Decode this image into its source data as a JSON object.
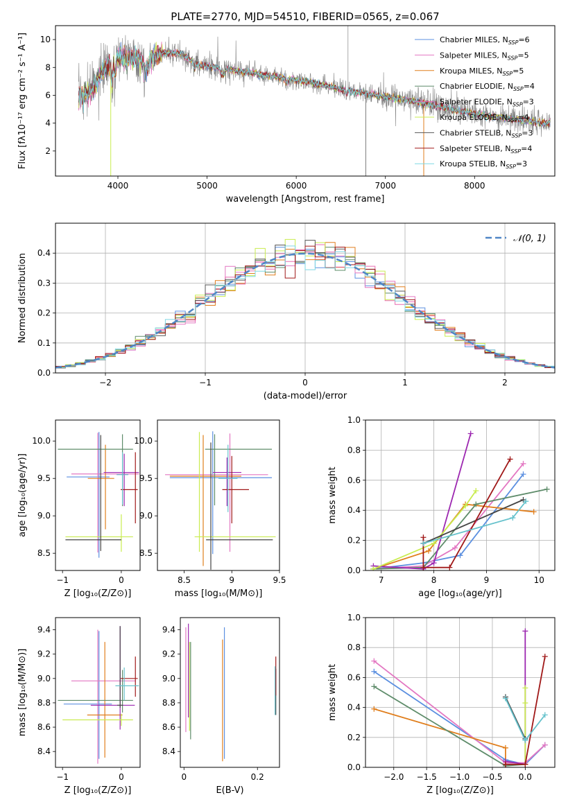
{
  "title": "PLATE=2770, MJD=54510, FIBERID=0565, z=0.067",
  "colors": [
    "#5b8fe0",
    "#e377c2",
    "#e07e1c",
    "#5e8c6a",
    "#e86ab0",
    "#c9ec4f",
    "#555555",
    "#a01818",
    "#7fd8e4"
  ],
  "colors_panels": [
    "#5b8fe0",
    "#e377c2",
    "#e07e1c",
    "#5e8c6a",
    "#9c27b0",
    "#c9ec4f",
    "#444444",
    "#a01818",
    "#66c2cc"
  ],
  "chart_data": [
    {
      "type": "line",
      "xlabel": "wavelength [Angstrom, rest frame]",
      "ylabel": "Flux [fλ10⁻¹⁷ erg cm⁻² s⁻¹ A⁻¹]",
      "xlim": [
        3300,
        8900
      ],
      "ylim": [
        0.2,
        11
      ],
      "xticks": [
        4000,
        5000,
        6000,
        7000,
        8000
      ],
      "yticks": [
        2,
        4,
        6,
        8,
        10
      ],
      "legend_position": "top-right",
      "legend": [
        "Chabrier MILES, N_SSP=6",
        "Salpeter MILES, N_SSP=5",
        "Kroupa MILES, N_SSP=5",
        "Chabrier ELODIE, N_SSP=4",
        "Salpeter ELODIE, N_SSP=3",
        "Kroupa ELODIE, N_SSP=4",
        "Chabrier STELIB, N_SSP=3",
        "Salpeter STELIB, N_SSP=4",
        "Kroupa STELIB, N_SSP=3"
      ],
      "spectrum_anchor_points": {
        "x": [
          3600,
          3700,
          3800,
          3900,
          4000,
          4100,
          4200,
          4300,
          4400,
          4500,
          4600,
          4700,
          4800,
          4900,
          5000,
          5100,
          5200,
          5300,
          5400,
          5500,
          5600,
          5700,
          5800,
          5900,
          6000,
          6200,
          6400,
          6600,
          6800,
          7000,
          7200,
          7400,
          7600,
          7800,
          8000,
          8200,
          8400,
          8800
        ],
        "y": [
          6.0,
          6.3,
          7.4,
          8.2,
          8.7,
          8.9,
          8.7,
          8.5,
          8.8,
          9.1,
          9.0,
          9.0,
          8.6,
          8.2,
          8.1,
          8.0,
          7.9,
          7.8,
          7.7,
          7.6,
          7.5,
          7.4,
          7.3,
          7.2,
          7.1,
          6.9,
          6.6,
          6.3,
          6.1,
          5.9,
          5.7,
          5.5,
          5.2,
          4.9,
          4.7,
          4.5,
          4.3,
          4.0
        ]
      }
    },
    {
      "type": "histogram",
      "xlabel": "(data-model)/error",
      "ylabel": "Normed distribution",
      "xlim": [
        -2.5,
        2.5
      ],
      "ylim": [
        0,
        0.5
      ],
      "xticks": [
        -2,
        -1,
        0,
        1,
        2
      ],
      "yticks": [
        0.0,
        0.1,
        0.2,
        0.3,
        0.4
      ],
      "bin_width": 0.1,
      "grid": true,
      "legend_position": "top-right",
      "legend": [
        "𝒩(0, 1)"
      ],
      "reference_curve": "normal(0,1)"
    },
    {
      "type": "errorbar",
      "xlabel": "Z [log₁₀(Z/Z⊙)]",
      "ylabel": "age  [log₁₀(age/yr)]",
      "xlim": [
        -1.12,
        0.32
      ],
      "ylim": [
        8.27,
        10.28
      ],
      "xticks": [
        -1,
        0
      ],
      "xtick_labels": [
        "−1",
        "0"
      ],
      "yticks": [
        8.5,
        9.0,
        9.5,
        10.0
      ],
      "points": [
        {
          "x": -0.38,
          "xerr": [
            0.55,
            0.18
          ],
          "y": 9.52,
          "yerr": [
            1.08,
            0.6
          ]
        },
        {
          "x": -0.4,
          "xerr": [
            0.45,
            0.7
          ],
          "y": 9.56,
          "yerr": [
            1.05,
            0.55
          ]
        },
        {
          "x": -0.27,
          "xerr": [
            0.3,
            0.15
          ],
          "y": 9.5,
          "yerr": [
            0.68,
            0.45
          ]
        },
        {
          "x": 0.02,
          "xerr": [
            1.1,
            0.18
          ],
          "y": 9.89,
          "yerr": [
            0.76,
            0.2
          ]
        },
        {
          "x": 0.05,
          "xerr": [
            0.35,
            0.25
          ],
          "y": 9.58,
          "yerr": [
            0.45,
            0.25
          ]
        },
        {
          "x": 0.0,
          "xerr": [
            0.95,
            0.2
          ],
          "y": 8.72,
          "yerr": [
            0.2,
            0.3
          ]
        },
        {
          "x": -0.35,
          "xerr": [
            0.6,
            0.35
          ],
          "y": 8.68,
          "yerr": [
            0.15,
            1.4
          ]
        },
        {
          "x": 0.24,
          "xerr": [
            0.25,
            0.04
          ],
          "y": 9.35,
          "yerr": [
            0.45,
            0.5
          ]
        },
        {
          "x": 0.02,
          "xerr": [
            0.1,
            0.1
          ],
          "y": 9.55,
          "yerr": [
            0.4,
            0.3
          ]
        }
      ]
    },
    {
      "type": "errorbar",
      "xlabel": "mass [log₁₀(M/M⊙)]",
      "ylabel": "",
      "xlim": [
        8.22,
        9.5
      ],
      "ylim": [
        8.27,
        10.28
      ],
      "xticks": [
        8.5,
        9.0,
        9.5
      ],
      "yticks": [
        8.5,
        9.0,
        9.5,
        10.0
      ],
      "points": [
        {
          "x": 8.8,
          "xerr": [
            0.45,
            0.62
          ],
          "y": 9.51,
          "yerr": [
            1.02,
            0.62
          ]
        },
        {
          "x": 8.98,
          "xerr": [
            0.68,
            0.4
          ],
          "y": 9.55,
          "yerr": [
            1.03,
            0.55
          ]
        },
        {
          "x": 8.7,
          "xerr": [
            0.35,
            0.4
          ],
          "y": 9.53,
          "yerr": [
            1.2,
            0.55
          ]
        },
        {
          "x": 8.82,
          "xerr": [
            0.1,
            0.6
          ],
          "y": 9.89,
          "yerr": [
            0.75,
            0.2
          ]
        },
        {
          "x": 8.95,
          "xerr": [
            0.15,
            0.15
          ],
          "y": 9.58,
          "yerr": [
            0.45,
            0.2
          ]
        },
        {
          "x": 8.66,
          "xerr": [
            0.05,
            0.8
          ],
          "y": 8.72,
          "yerr": [
            0.2,
            1.4
          ]
        },
        {
          "x": 8.78,
          "xerr": [
            0.05,
            0.65
          ],
          "y": 8.68,
          "yerr": [
            0.4,
            1.3
          ]
        },
        {
          "x": 9.0,
          "xerr": [
            0.1,
            0.18
          ],
          "y": 9.35,
          "yerr": [
            0.45,
            0.45
          ]
        },
        {
          "x": 8.96,
          "xerr": [
            0.1,
            0.1
          ],
          "y": 9.5,
          "yerr": [
            0.45,
            0.45
          ]
        }
      ]
    },
    {
      "type": "line",
      "xlabel": "age  [log₁₀(age/yr)]",
      "ylabel": "mass weight",
      "xlim": [
        6.7,
        10.3
      ],
      "ylim": [
        0,
        1.0
      ],
      "xticks": [
        7,
        8,
        9,
        10
      ],
      "yticks": [
        0.0,
        0.2,
        0.4,
        0.6,
        0.8,
        1.0
      ],
      "grid": true,
      "series": [
        {
          "x": [
            6.85,
            7.8,
            8.5,
            9.7
          ],
          "y": [
            0.01,
            0.05,
            0.1,
            0.64
          ]
        },
        {
          "x": [
            6.85,
            7.8,
            8.4,
            9.7
          ],
          "y": [
            0.01,
            0.03,
            0.15,
            0.71
          ]
        },
        {
          "x": [
            6.85,
            7.9,
            8.6,
            9.9
          ],
          "y": [
            0.01,
            0.13,
            0.44,
            0.39
          ]
        },
        {
          "x": [
            6.85,
            7.8,
            8.8,
            10.15
          ],
          "y": [
            0.01,
            0.02,
            0.44,
            0.54
          ]
        },
        {
          "x": [
            6.85,
            7.8,
            8.0,
            8.7
          ],
          "y": [
            0.03,
            0.01,
            0.05,
            0.91
          ]
        },
        {
          "x": [
            6.85,
            8.0,
            8.6,
            8.8
          ],
          "y": [
            0.01,
            0.18,
            0.43,
            0.53
          ]
        },
        {
          "x": [
            7.8,
            9.7
          ],
          "y": [
            0.18,
            0.47
          ]
        },
        {
          "x": [
            7.8,
            7.8,
            8.3,
            9.45
          ],
          "y": [
            0.22,
            0.02,
            0.02,
            0.74
          ]
        },
        {
          "x": [
            7.8,
            9.5,
            9.75
          ],
          "y": [
            0.18,
            0.35,
            0.46
          ]
        }
      ]
    },
    {
      "type": "errorbar",
      "xlabel": "Z [log₁₀(Z/Z⊙)]",
      "ylabel": "mass [log₁₀(M/M⊙)]",
      "xlim": [
        -1.12,
        0.32
      ],
      "ylim": [
        8.27,
        9.5
      ],
      "xticks": [
        -1,
        0
      ],
      "xtick_labels": [
        "−1",
        "0"
      ],
      "yticks": [
        8.4,
        8.6,
        8.8,
        9.0,
        9.2,
        9.4
      ],
      "points": [
        {
          "x": -0.38,
          "xerr": [
            0.6,
            0.22
          ],
          "y": 8.79,
          "yerr": [
            0.45,
            0.6
          ]
        },
        {
          "x": -0.4,
          "xerr": [
            0.45,
            0.65
          ],
          "y": 8.98,
          "yerr": [
            0.68,
            0.42
          ]
        },
        {
          "x": -0.28,
          "xerr": [
            0.3,
            0.3
          ],
          "y": 8.7,
          "yerr": [
            0.35,
            0.6
          ]
        },
        {
          "x": 0.02,
          "xerr": [
            1.1,
            0.18
          ],
          "y": 8.82,
          "yerr": [
            0.1,
            0.25
          ]
        },
        {
          "x": -0.02,
          "xerr": [
            0.5,
            0.25
          ],
          "y": 8.78,
          "yerr": [
            0.2,
            0.65
          ]
        },
        {
          "x": 0.0,
          "xerr": [
            1.0,
            0.2
          ],
          "y": 8.66,
          "yerr": [
            0.05,
            0.05
          ]
        },
        {
          "x": -0.02,
          "xerr": [
            0.05,
            0.05
          ],
          "y": 8.78,
          "yerr": [
            0.02,
            0.65
          ]
        },
        {
          "x": 0.24,
          "xerr": [
            0.25,
            0.04
          ],
          "y": 9.0,
          "yerr": [
            0.15,
            0.18
          ]
        },
        {
          "x": 0.05,
          "xerr": [
            0.15,
            0.25
          ],
          "y": 8.94,
          "yerr": [
            0.12,
            0.15
          ]
        }
      ]
    },
    {
      "type": "errorbar",
      "xlabel": "E(B-V)",
      "ylabel": "",
      "xlim": [
        -0.01,
        0.26
      ],
      "ylim": [
        8.27,
        9.5
      ],
      "xticks": [
        0.0,
        0.2
      ],
      "yticks": [
        8.4,
        8.6,
        8.8,
        9.0,
        9.2,
        9.4
      ],
      "points": [
        {
          "x": 0.11,
          "y": 8.79,
          "yerr": [
            0.45,
            0.63
          ]
        },
        {
          "x": 0.005,
          "y": 8.98,
          "yerr": [
            0.42,
            0.44
          ]
        },
        {
          "x": 0.105,
          "y": 8.7,
          "yerr": [
            0.38,
            0.62
          ]
        },
        {
          "x": 0.018,
          "y": 8.82,
          "yerr": [
            0.32,
            0.48
          ]
        },
        {
          "x": 0.012,
          "y": 8.9,
          "yerr": [
            0.22,
            0.55
          ]
        },
        {
          "x": 0.015,
          "y": 8.9,
          "yerr": [
            0.33,
            0.4
          ]
        },
        {
          "x": 0.25,
          "y": 8.85,
          "yerr": [
            0.15,
            0.23
          ]
        },
        {
          "x": 0.25,
          "y": 9.04,
          "yerr": [
            0.18,
            0.14
          ]
        },
        {
          "x": 0.248,
          "y": 8.9,
          "yerr": [
            0.2,
            0.2
          ]
        }
      ]
    },
    {
      "type": "line",
      "xlabel": "Z [log₁₀(Z/Z⊙)]",
      "ylabel": "mass weight",
      "xlim": [
        -2.43,
        0.45
      ],
      "ylim": [
        0,
        1.0
      ],
      "xticks": [
        -2.0,
        -1.5,
        -1.0,
        -0.5,
        0.0
      ],
      "xtick_labels": [
        "−2.0",
        "−1.5",
        "−1.0",
        "−0.5",
        "0.0"
      ],
      "yticks": [
        0.0,
        0.2,
        0.4,
        0.6,
        0.8,
        1.0
      ],
      "grid": true,
      "series": [
        {
          "x": [
            -2.3,
            -0.3,
            0.0,
            0.3
          ],
          "y": [
            0.64,
            0.05,
            0.02,
            0.15
          ]
        },
        {
          "x": [
            -2.3,
            -0.3,
            0.0,
            0.3
          ],
          "y": [
            0.71,
            0.03,
            0.03,
            0.15
          ]
        },
        {
          "x": [
            -2.3,
            -0.3,
            -0.3
          ],
          "y": [
            0.39,
            0.13,
            0.02
          ]
        },
        {
          "x": [
            -2.3,
            -0.3,
            0.0
          ],
          "y": [
            0.54,
            0.01,
            0.02
          ]
        },
        {
          "x": [
            0.0,
            0.0,
            -0.3
          ],
          "y": [
            0.91,
            0.02,
            0.04
          ]
        },
        {
          "x": [
            0.0,
            0.0,
            0.0
          ],
          "y": [
            0.53,
            0.43,
            0.02
          ]
        },
        {
          "x": [
            -0.3,
            0.0
          ],
          "y": [
            0.47,
            0.19
          ]
        },
        {
          "x": [
            -0.3,
            0.0,
            0.3
          ],
          "y": [
            0.02,
            0.02,
            0.74
          ]
        },
        {
          "x": [
            -0.3,
            0.0,
            0.3
          ],
          "y": [
            0.46,
            0.18,
            0.35
          ]
        }
      ]
    }
  ]
}
